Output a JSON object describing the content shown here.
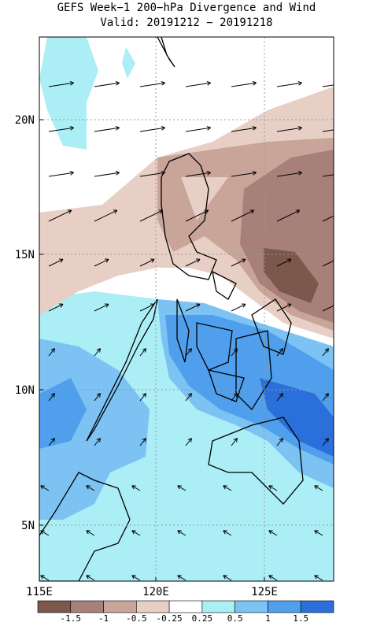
{
  "title": "GEFS Week−1 200−hPa Divergence and Wind",
  "subtitle": "Valid: 20191212 − 20191218",
  "lat_labels": [
    "20N",
    "15N",
    "10N",
    "5N"
  ],
  "lon_labels": [
    "115E",
    "120E",
    "125E"
  ],
  "colorbar": {
    "labels": [
      "-1.5",
      "-1",
      "-0.5",
      "-0.25",
      "0.25",
      "0.5",
      "1",
      "1.5"
    ],
    "colors": [
      "#7b574c",
      "#a8807a",
      "#c9a498",
      "#e8cfc5",
      "#ffffff",
      "#abeef6",
      "#7cc2f2",
      "#4f9fec",
      "#2b6fdb"
    ]
  }
}
